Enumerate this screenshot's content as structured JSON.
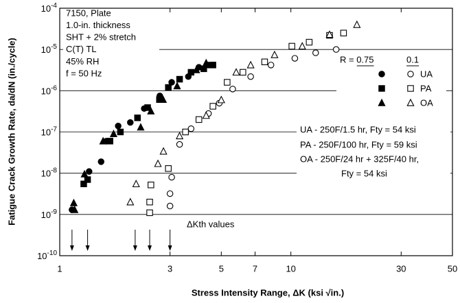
{
  "chart_data": {
    "type": "scatter",
    "xlabel": "Stress Intensity Range, ΔK (ksi √in.)",
    "ylabel": "Fatigue Crack Growth Rate, da/dN (in./cycle)",
    "xscale": "log",
    "yscale": "log",
    "xlim": [
      1,
      50
    ],
    "ylim": [
      1e-10,
      0.0001
    ],
    "xticks": [
      1,
      3,
      5,
      7,
      10,
      30,
      50
    ],
    "yticks": [
      {
        "value": 0.0001,
        "label": "10-4"
      },
      {
        "value": 1e-05,
        "label": "10-5"
      },
      {
        "value": 1e-06,
        "label": "10-6"
      },
      {
        "value": 1e-07,
        "label": "10-7"
      },
      {
        "value": 1e-08,
        "label": "10-8"
      },
      {
        "value": 1e-09,
        "label": "10-9"
      },
      {
        "value": 1e-10,
        "label": "10-10"
      }
    ],
    "grid": true,
    "series": [
      {
        "marker": "circle",
        "filled": true,
        "color": "#000",
        "x": [
          1.13,
          1.34,
          1.51,
          1.59,
          1.79,
          2.02,
          2.32,
          2.71,
          3.05,
          3.6,
          4.0,
          4.4
        ],
        "values": [
          1.3e-09,
          1.1e-08,
          1.9e-08,
          6e-08,
          1.4e-07,
          1.7e-07,
          3.7e-07,
          7.5e-07,
          1.6e-06,
          2.2e-06,
          3.7e-06,
          4.2e-06
        ]
      },
      {
        "marker": "square",
        "filled": true,
        "color": "#000",
        "x": [
          1.27,
          1.32,
          1.65,
          1.83,
          2.17,
          2.4,
          2.7,
          2.95,
          3.3,
          3.7,
          4.2,
          4.6
        ],
        "values": [
          5.5e-09,
          7e-09,
          6e-08,
          1e-07,
          2.2e-07,
          3.9e-07,
          6.1e-07,
          1.2e-06,
          1.9e-06,
          2.8e-06,
          3.4e-06,
          4.2e-06
        ]
      },
      {
        "marker": "triangle",
        "filled": true,
        "color": "#000",
        "x": [
          1.15,
          1.16,
          1.28,
          1.54,
          1.71,
          2.24,
          2.48,
          2.8,
          3.22,
          3.9,
          4.3
        ],
        "values": [
          1.9e-09,
          1.3e-09,
          9.5e-09,
          6e-08,
          9e-08,
          1.3e-07,
          3.2e-07,
          6.1e-07,
          1.3e-06,
          3.2e-06,
          4.7e-06
        ]
      },
      {
        "marker": "circle",
        "filled": false,
        "color": "#000",
        "x": [
          3.0,
          3.0,
          3.05,
          3.3,
          3.7,
          4.4,
          4.9,
          5.6,
          6.7,
          8.2,
          10.4,
          12.8,
          15.7
        ],
        "values": [
          1.6e-09,
          3.2e-09,
          8e-09,
          5e-08,
          1.2e-07,
          2.8e-07,
          5e-07,
          1.1e-06,
          2.2e-06,
          4.2e-06,
          6.1e-06,
          8.3e-06,
          1e-05
        ]
      },
      {
        "marker": "square",
        "filled": false,
        "color": "#000",
        "x": [
          2.45,
          2.45,
          2.48,
          2.95,
          3.5,
          4.0,
          4.6,
          5.3,
          6.2,
          7.7,
          10.1,
          12,
          14.7,
          16.9
        ],
        "values": [
          1.1e-09,
          2e-09,
          5.2e-09,
          1.3e-08,
          1e-07,
          2e-07,
          4.2e-07,
          1.6e-06,
          2.8e-06,
          5e-06,
          1.2e-05,
          1.5e-05,
          2.2e-05,
          2.5e-05
        ]
      },
      {
        "marker": "triangle",
        "filled": false,
        "color": "#000",
        "x": [
          2.02,
          2.14,
          2.66,
          2.81,
          3.3,
          4.3,
          5.0,
          5.8,
          6.7,
          8.5,
          11.2,
          14.7,
          19.3
        ],
        "values": [
          2e-09,
          5.5e-09,
          1.7e-08,
          3.4e-08,
          8e-08,
          2.5e-07,
          6e-07,
          2.8e-06,
          4.2e-06,
          7.4e-06,
          1.2e-05,
          2.3e-05,
          4e-05
        ]
      }
    ],
    "legend": {
      "headers": [
        "R = 0.75",
        "0.1"
      ],
      "rows": [
        "UA",
        "PA",
        "OA"
      ]
    },
    "specimen_notes": [
      "7150, Plate",
      "1.0-in. thickness",
      "SHT + 2% stretch",
      "C(T) TL",
      "45% RH",
      "f = 50 Hz"
    ],
    "temper_notes": [
      "UA - 250F/1.5 hr, Fty = 54 ksi",
      "PA - 250F/100 hr, Fty = 59 ksi",
      "OA - 250F/24 hr + 325F/40 hr,",
      "Fty = 54 ksi"
    ],
    "threshold_label": "ΔKth values",
    "threshold_arrows": [
      1.13,
      1.32,
      2.12,
      2.45,
      3.0
    ]
  }
}
